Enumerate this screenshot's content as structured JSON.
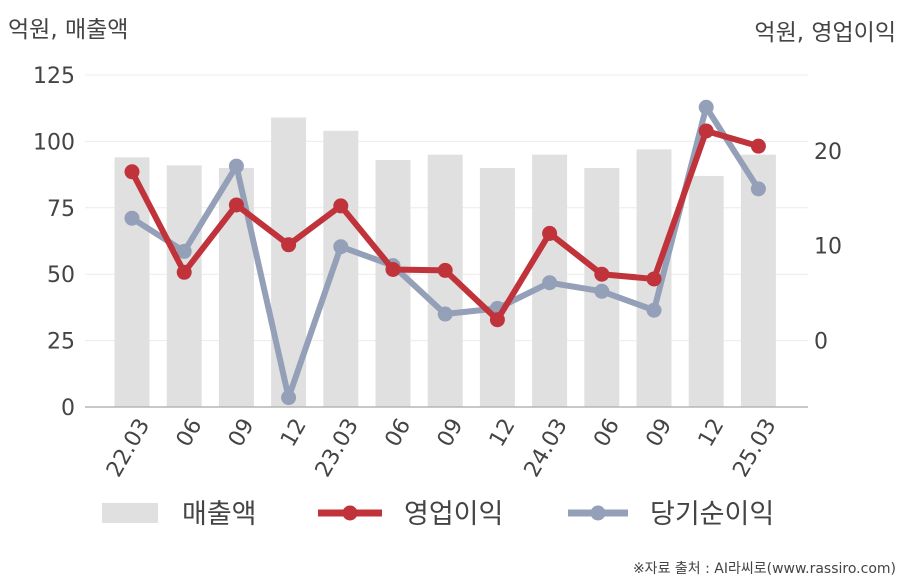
{
  "chart_data": {
    "type": "bar+line",
    "left_axis_label": "억원, 매출액",
    "right_axis_label": "억원, 영업이익",
    "categories": [
      "22.03",
      "06",
      "09",
      "12",
      "23.03",
      "06",
      "09",
      "12",
      "24.03",
      "06",
      "09",
      "12",
      "25.03"
    ],
    "left_ylim": [
      0,
      125
    ],
    "left_ticks": [
      0,
      25,
      50,
      75,
      100,
      125
    ],
    "right_ylim": [
      -7,
      28
    ],
    "right_ticks": [
      0,
      10,
      20
    ],
    "grid": true,
    "legend_position": "bottom",
    "series": [
      {
        "name": "매출액",
        "kind": "bar",
        "axis": "left",
        "color": "#e0e0e0",
        "values": [
          94,
          91,
          90,
          109,
          104,
          93,
          95,
          90,
          95,
          90,
          97,
          87,
          95
        ]
      },
      {
        "name": "영업이익",
        "kind": "line",
        "axis": "right",
        "color": "#c0333a",
        "values": [
          17.8,
          7.2,
          14.3,
          10.1,
          14.2,
          7.5,
          7.4,
          2.2,
          11.3,
          7.0,
          6.5,
          22.1,
          20.5
        ]
      },
      {
        "name": "당기순이익",
        "kind": "line",
        "axis": "right",
        "color": "#949fb8",
        "values": [
          12.9,
          9.4,
          18.4,
          -6.0,
          9.9,
          7.9,
          2.8,
          3.4,
          6.1,
          5.2,
          3.2,
          24.6,
          16.0
        ]
      }
    ]
  },
  "source_note": "※자료 출처 : AI라씨로(www.rassiro.com)"
}
